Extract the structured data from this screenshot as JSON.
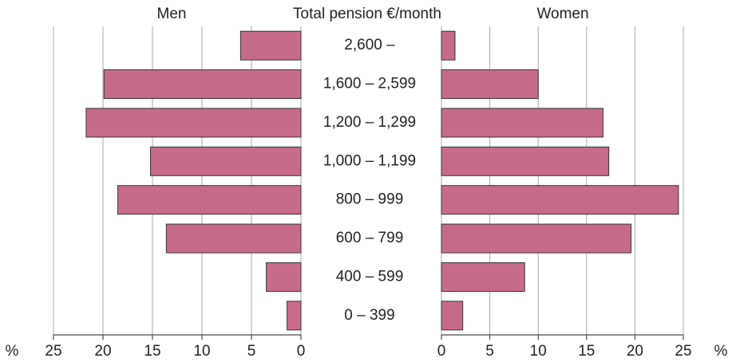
{
  "chart_data": {
    "type": "butterfly",
    "title": "Total pension €/month",
    "xlabel": "%",
    "categories": [
      "2,600 –",
      "1,600 – 2,599",
      "1,200 – 1,299",
      "1,000 – 1,199",
      "800 – 999",
      "600 – 799",
      "400 – 599",
      "0 – 399"
    ],
    "series": [
      {
        "name": "Men",
        "color": "#c76b8c",
        "values": [
          6.1,
          19.9,
          21.7,
          15.2,
          18.5,
          13.6,
          3.5,
          1.4
        ]
      },
      {
        "name": "Women",
        "color": "#c76b8c",
        "values": [
          1.4,
          10.0,
          16.7,
          17.3,
          24.5,
          19.6,
          8.6,
          2.2
        ]
      }
    ],
    "xlim": [
      0,
      25
    ],
    "xticks": [
      0,
      5,
      10,
      15,
      20,
      25
    ],
    "grid": true
  }
}
